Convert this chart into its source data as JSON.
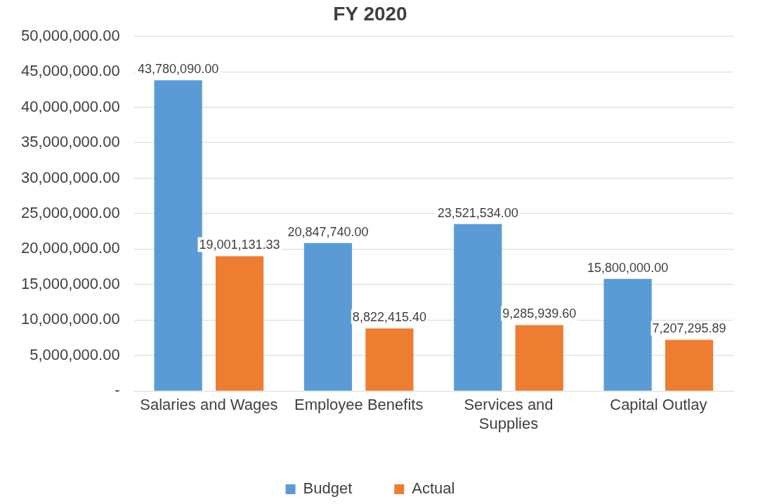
{
  "chart_data": {
    "type": "bar",
    "title": "FY 2020",
    "categories": [
      "Salaries and Wages",
      "Employee Benefits",
      "Services and Supplies",
      "Capital Outlay"
    ],
    "series": [
      {
        "name": "Budget",
        "color": "#5b9bd5",
        "values": [
          43780090,
          20847740,
          23521534,
          15800000
        ],
        "value_labels": [
          "43,780,090.00",
          "20,847,740.00",
          "23,521,534.00",
          "15,800,000.00"
        ]
      },
      {
        "name": "Actual",
        "color": "#ed7d31",
        "values": [
          19001131.33,
          8822415.4,
          9285939.6,
          7207295.89
        ],
        "value_labels": [
          "19,001,131.33",
          "8,822,415.40",
          "9,285,939.60",
          "7,207,295.89"
        ]
      }
    ],
    "ylim": [
      0,
      50000000
    ],
    "yticks": [
      {
        "value": 0,
        "label": "-"
      },
      {
        "value": 5000000,
        "label": "5,000,000.00"
      },
      {
        "value": 10000000,
        "label": "10,000,000.00"
      },
      {
        "value": 15000000,
        "label": "15,000,000.00"
      },
      {
        "value": 20000000,
        "label": "20,000,000.00"
      },
      {
        "value": 25000000,
        "label": "25,000,000.00"
      },
      {
        "value": 30000000,
        "label": "30,000,000.00"
      },
      {
        "value": 35000000,
        "label": "35,000,000.00"
      },
      {
        "value": 40000000,
        "label": "40,000,000.00"
      },
      {
        "value": 45000000,
        "label": "45,000,000.00"
      },
      {
        "value": 50000000,
        "label": "50,000,000.00"
      }
    ],
    "grid": "y",
    "legend": "bottom"
  }
}
